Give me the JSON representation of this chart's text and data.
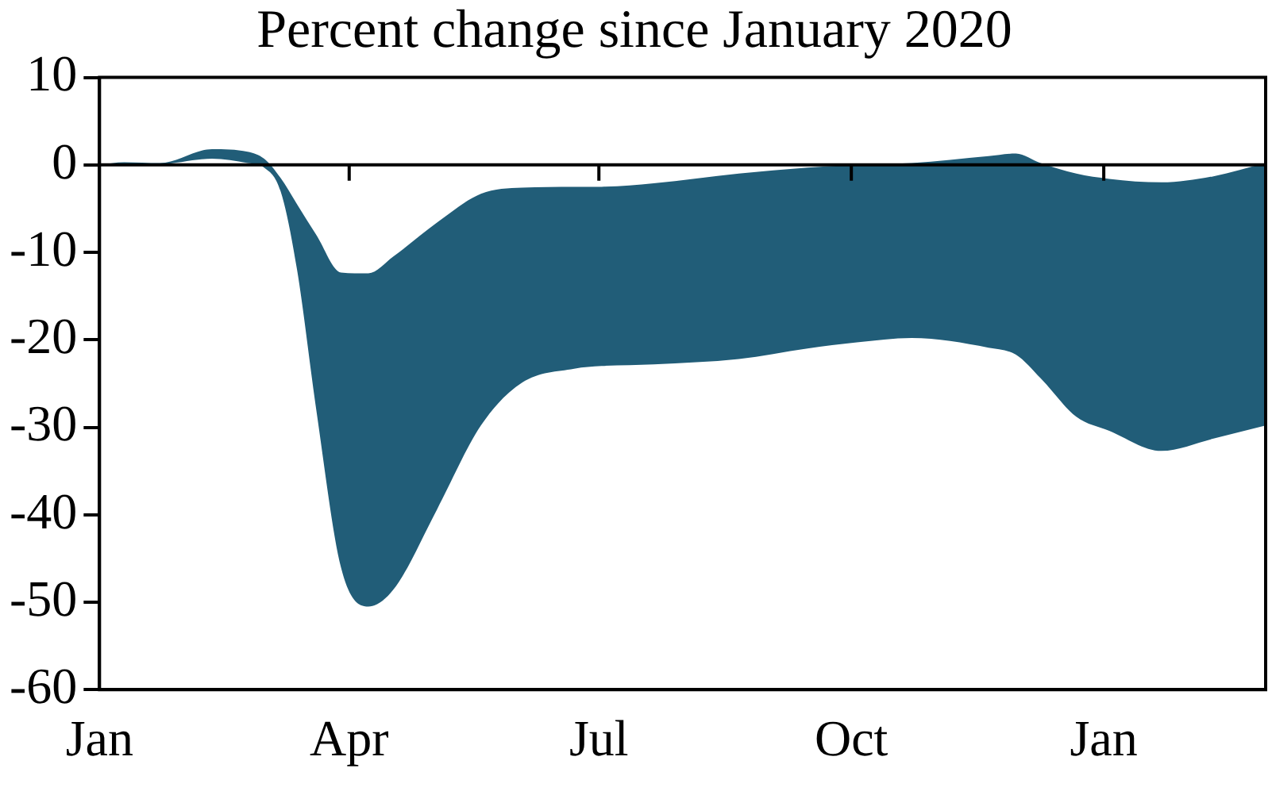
{
  "chart_data": {
    "type": "line",
    "title": "Percent change since January 2020",
    "x": [
      "2020-01-01",
      "2020-01-10",
      "2020-01-23",
      "2020-02-11",
      "2020-02-24",
      "2020-03-01",
      "2020-03-07",
      "2020-03-13",
      "2020-03-20",
      "2020-03-29",
      "2020-04-08",
      "2020-04-17",
      "2020-05-03",
      "2020-05-19",
      "2020-06-03",
      "2020-06-22",
      "2020-07-02",
      "2020-07-21",
      "2020-08-21",
      "2020-09-15",
      "2020-10-03",
      "2020-10-23",
      "2020-11-20",
      "2020-11-30",
      "2020-12-09",
      "2020-12-22",
      "2021-01-03",
      "2021-01-22",
      "2021-02-10",
      "2021-03-01"
    ],
    "series": [
      {
        "color": "#215d78",
        "values": [
          null,
          null,
          null,
          null,
          null,
          null,
          null,
          null,
          null,
          null,
          null,
          null,
          null,
          null,
          null,
          null,
          null,
          null,
          null,
          null,
          null,
          null,
          null,
          null,
          null,
          null,
          null,
          null,
          null,
          null
        ],
        "upper": [
          0,
          0.3,
          0.2,
          1.8,
          1.5,
          0.7,
          -1.5,
          -4.5,
          -8,
          -12.3,
          -12.4,
          -10.5,
          -6.6,
          -3.3,
          -2.6,
          -2.5,
          -2.5,
          -2.1,
          -1,
          -0.3,
          0,
          0.2,
          1,
          1.3,
          0.2,
          -1,
          -1.6,
          -2,
          -1.3,
          0.2
        ],
        "lower": [
          0,
          0.1,
          0.1,
          0.7,
          0.2,
          -0.3,
          -3,
          -12,
          -28,
          -46,
          -50.5,
          -48.6,
          -39.4,
          -29.8,
          -24.9,
          -23.3,
          -23,
          -22.8,
          -22.2,
          -21,
          -20.3,
          -19.8,
          -20.9,
          -21.7,
          -24.4,
          -28.8,
          -30.4,
          -32.7,
          -31.3,
          -29.8
        ]
      }
    ],
    "xlim": [
      "2020-01-01",
      "2021-03-01"
    ],
    "xticks": [
      {
        "value": "2020-01-01",
        "label": "Jan"
      },
      {
        "value": "2020-04-01",
        "label": "Apr"
      },
      {
        "value": "2020-07-01",
        "label": "Jul"
      },
      {
        "value": "2020-10-01",
        "label": "Oct"
      },
      {
        "value": "2021-01-01",
        "label": "Jan"
      }
    ],
    "ylim": [
      -60,
      10
    ],
    "yticks": [
      -60,
      -50,
      -40,
      -30,
      -20,
      -10,
      0,
      10
    ],
    "ref_lines": [
      {
        "axis": "y",
        "value": 0,
        "color": "#000000"
      }
    ],
    "grid": false,
    "legend": false
  }
}
